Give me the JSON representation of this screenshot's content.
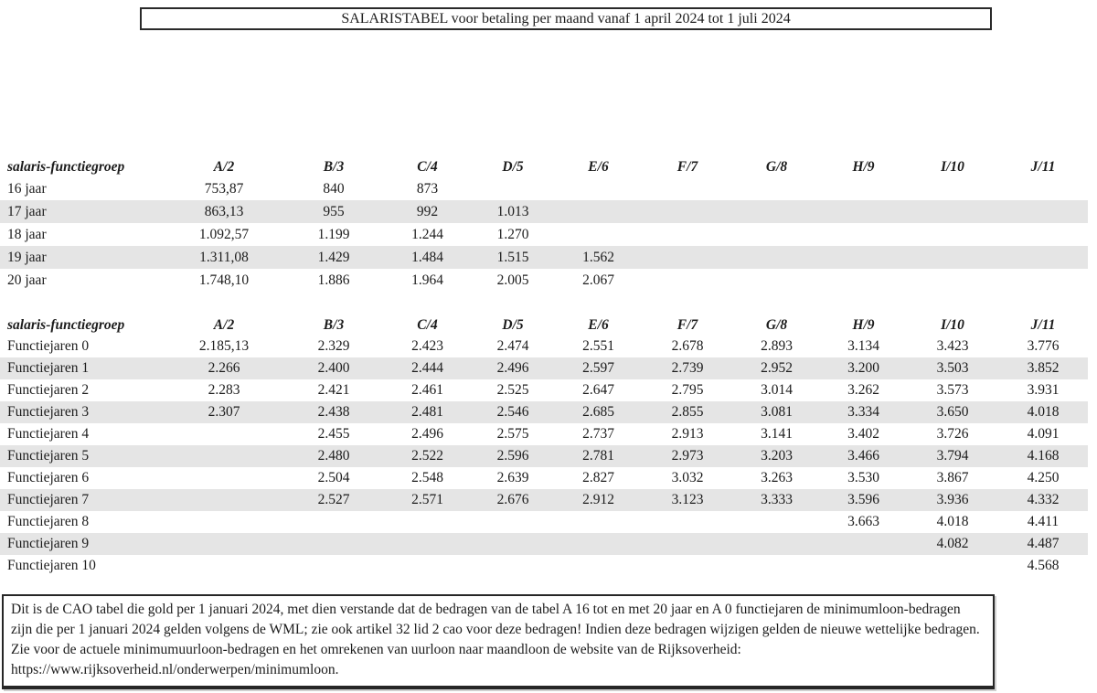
{
  "title_box": {
    "text": "SALARISTABEL voor betaling per maand vanaf 1 april 2024 tot 1 juli 2024"
  },
  "age_table": {
    "header": [
      "salaris-functiegroep",
      "A/2",
      "B/3",
      "C/4",
      "D/5",
      "E/6",
      "F/7",
      "G/8",
      "H/9",
      "I/10",
      "J/11"
    ],
    "rows": [
      {
        "label": "16 jaar",
        "values": [
          "753,87",
          "840",
          "873",
          "",
          "",
          "",
          "",
          "",
          "",
          ""
        ]
      },
      {
        "label": "17 jaar",
        "values": [
          "863,13",
          "955",
          "992",
          "1.013",
          "",
          "",
          "",
          "",
          "",
          ""
        ]
      },
      {
        "label": "18 jaar",
        "values": [
          "1.092,57",
          "1.199",
          "1.244",
          "1.270",
          "",
          "",
          "",
          "",
          "",
          ""
        ]
      },
      {
        "label": "19 jaar",
        "values": [
          "1.311,08",
          "1.429",
          "1.484",
          "1.515",
          "1.562",
          "",
          "",
          "",
          "",
          ""
        ]
      },
      {
        "label": "20 jaar",
        "values": [
          "1.748,10",
          "1.886",
          "1.964",
          "2.005",
          "2.067",
          "",
          "",
          "",
          "",
          ""
        ]
      }
    ]
  },
  "functie_table": {
    "header": [
      "salaris-functiegroep",
      "A/2",
      "B/3",
      "C/4",
      "D/5",
      "E/6",
      "F/7",
      "G/8",
      "H/9",
      "I/10",
      "J/11"
    ],
    "rows": [
      {
        "label": "Functiejaren 0",
        "values": [
          "2.185,13",
          "2.329",
          "2.423",
          "2.474",
          "2.551",
          "2.678",
          "2.893",
          "3.134",
          "3.423",
          "3.776"
        ]
      },
      {
        "label": "Functiejaren 1",
        "values": [
          "2.266",
          "2.400",
          "2.444",
          "2.496",
          "2.597",
          "2.739",
          "2.952",
          "3.200",
          "3.503",
          "3.852"
        ]
      },
      {
        "label": "Functiejaren 2",
        "values": [
          "2.283",
          "2.421",
          "2.461",
          "2.525",
          "2.647",
          "2.795",
          "3.014",
          "3.262",
          "3.573",
          "3.931"
        ]
      },
      {
        "label": "Functiejaren 3",
        "values": [
          "2.307",
          "2.438",
          "2.481",
          "2.546",
          "2.685",
          "2.855",
          "3.081",
          "3.334",
          "3.650",
          "4.018"
        ]
      },
      {
        "label": "Functiejaren 4",
        "values": [
          "",
          "2.455",
          "2.496",
          "2.575",
          "2.737",
          "2.913",
          "3.141",
          "3.402",
          "3.726",
          "4.091"
        ]
      },
      {
        "label": "Functiejaren 5",
        "values": [
          "",
          "2.480",
          "2.522",
          "2.596",
          "2.781",
          "2.973",
          "3.203",
          "3.466",
          "3.794",
          "4.168"
        ]
      },
      {
        "label": "Functiejaren 6",
        "values": [
          "",
          "2.504",
          "2.548",
          "2.639",
          "2.827",
          "3.032",
          "3.263",
          "3.530",
          "3.867",
          "4.250"
        ]
      },
      {
        "label": "Functiejaren 7",
        "values": [
          "",
          "2.527",
          "2.571",
          "2.676",
          "2.912",
          "3.123",
          "3.333",
          "3.596",
          "3.936",
          "4.332"
        ]
      },
      {
        "label": "Functiejaren 8",
        "values": [
          "",
          "",
          "",
          "",
          "",
          "",
          "",
          "3.663",
          "4.018",
          "4.411"
        ]
      },
      {
        "label": "Functiejaren 9",
        "values": [
          "",
          "",
          "",
          "",
          "",
          "",
          "",
          "",
          "4.082",
          "4.487"
        ]
      },
      {
        "label": "Functiejaren 10",
        "values": [
          "",
          "",
          "",
          "",
          "",
          "",
          "",
          "",
          "",
          "4.568"
        ]
      }
    ]
  },
  "footer_note": {
    "text": "Dit is de CAO tabel die gold per 1 januari 2024, met dien verstande dat de bedragen van de tabel A 16 tot en met 20 jaar en A 0 functiejaren de minimumloon-bedragen zijn die per 1 januari 2024 gelden volgens de WML; zie ook artikel 32 lid 2 cao voor deze bedragen! Indien deze bedragen wijzigen gelden de nieuwe wettelijke bedragen. Zie voor de actuele minimumuurloon-bedragen en het omrekenen van uurloon naar maandloon de website van de Rijksoverheid:",
    "url": "https://www.rijksoverheid.nl/onderwerpen/minimumloon."
  },
  "colors": {
    "row_shade": "#e5e5e5",
    "border": "#262626",
    "text": "#1c1c1c"
  }
}
